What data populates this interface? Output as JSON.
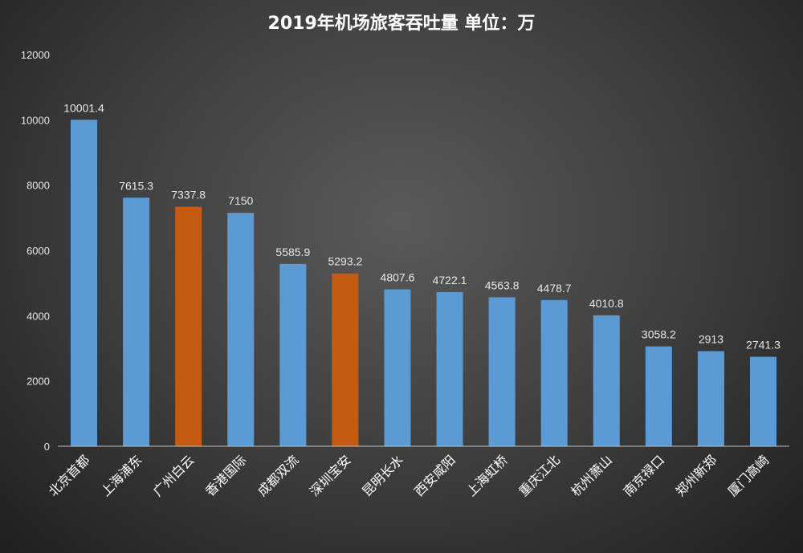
{
  "chart_data": {
    "type": "bar",
    "title": "2019年机场旅客吞吐量 单位：万",
    "categories": [
      "北京首都",
      "上海浦东",
      "广州白云",
      "香港国际",
      "成都双流",
      "深圳宝安",
      "昆明长水",
      "西安咸阳",
      "上海虹桥",
      "重庆江北",
      "杭州萧山",
      "南京禄口",
      "郑州新郑",
      "厦门高崎"
    ],
    "values": [
      10001.4,
      7615.3,
      7337.8,
      7150,
      5585.9,
      5293.2,
      4807.6,
      4722.1,
      4563.8,
      4478.7,
      4010.8,
      3058.2,
      2913,
      2741.3
    ],
    "data_labels": [
      "10001.4",
      "7615.3",
      "7337.8",
      "7150",
      "5585.9",
      "5293.2",
      "4807.6",
      "4722.1",
      "4563.8",
      "4478.7",
      "4010.8",
      "3058.2",
      "2913",
      "2741.3"
    ],
    "highlighted_categories": [
      "广州白云",
      "深圳宝安"
    ],
    "ylim": [
      0,
      12000
    ],
    "yticks": [
      0,
      2000,
      4000,
      6000,
      8000,
      10000,
      12000
    ],
    "ytick_labels": [
      "0",
      "2000",
      "4000",
      "6000",
      "8000",
      "10000",
      "12000"
    ],
    "grid": false,
    "legend": "none",
    "colors": {
      "bar_default": "#5b9bd5",
      "bar_highlight": "#c55a11",
      "title": "#ffffff",
      "text": "#e6e6e6",
      "axis": "#bfbfbf"
    }
  }
}
